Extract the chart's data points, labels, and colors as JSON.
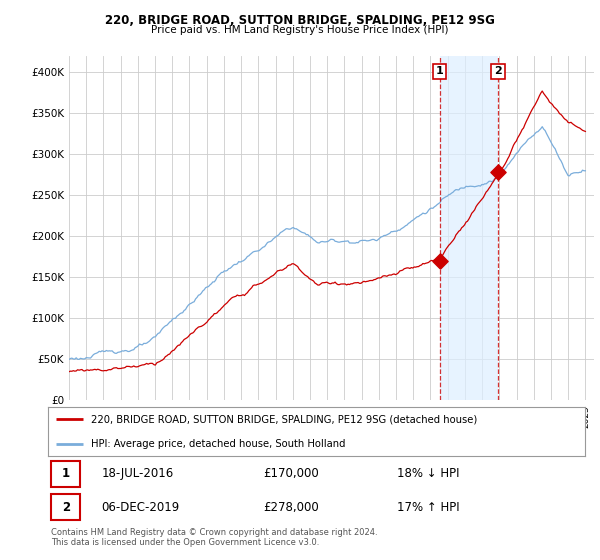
{
  "title": "220, BRIDGE ROAD, SUTTON BRIDGE, SPALDING, PE12 9SG",
  "subtitle": "Price paid vs. HM Land Registry's House Price Index (HPI)",
  "legend_label_red": "220, BRIDGE ROAD, SUTTON BRIDGE, SPALDING, PE12 9SG (detached house)",
  "legend_label_blue": "HPI: Average price, detached house, South Holland",
  "transaction1_label": "18-JUL-2016",
  "transaction1_price": 170000,
  "transaction1_hpi": "18% ↓ HPI",
  "transaction1_year": 2016.54,
  "transaction2_label": "06-DEC-2019",
  "transaction2_price": 278000,
  "transaction2_hpi": "17% ↑ HPI",
  "transaction2_year": 2019.92,
  "footnote": "Contains HM Land Registry data © Crown copyright and database right 2024.\nThis data is licensed under the Open Government Licence v3.0.",
  "red_color": "#cc0000",
  "blue_color": "#7aaddb",
  "shade_color": "#ddeeff",
  "background_color": "#ffffff",
  "grid_color": "#cccccc",
  "ylim": [
    0,
    420000
  ],
  "yticks": [
    0,
    50000,
    100000,
    150000,
    200000,
    250000,
    300000,
    350000,
    400000
  ],
  "xmin": 1995,
  "xmax": 2025.5
}
